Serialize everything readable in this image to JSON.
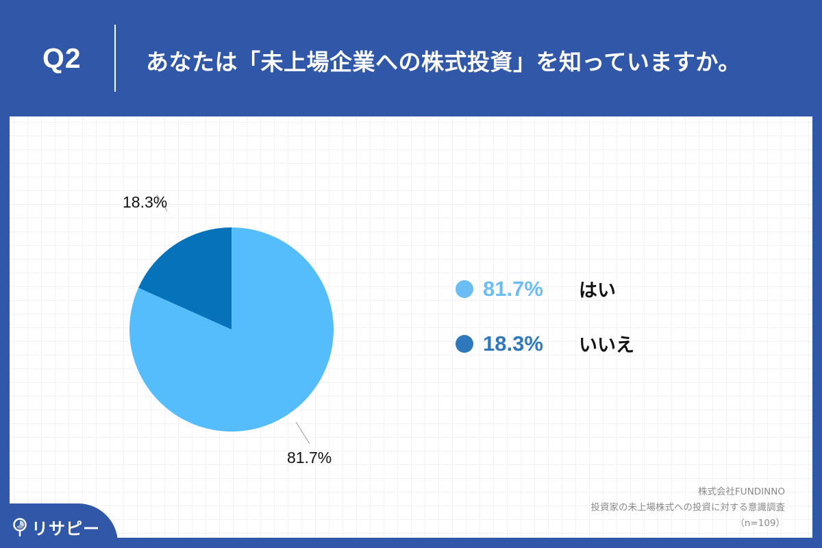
{
  "header": {
    "question_number": "Q2",
    "question_text": "あなたは「未上場企業への株式投資」を知っていますか。"
  },
  "chart_data": {
    "type": "pie",
    "title": "あなたは「未上場企業への株式投資」を知っていますか。",
    "categories": [
      "はい",
      "いいえ"
    ],
    "values": [
      81.7,
      18.3
    ],
    "unit": "%",
    "colors": [
      "#55bdfb",
      "#0672b9"
    ],
    "start_angle": "12 o'clock, clockwise for はい",
    "data_labels": [
      "81.7%",
      "18.3%"
    ],
    "legend_position": "right",
    "grid": true,
    "n": 109
  },
  "pie": {
    "labels": {
      "yes": "81.7%",
      "no": "18.3%"
    }
  },
  "legend": {
    "items": [
      {
        "pct": "81.7%",
        "label": "はい",
        "color": "#6cbcf5"
      },
      {
        "pct": "18.3%",
        "label": "いいえ",
        "color": "#2f78bd"
      }
    ]
  },
  "source": {
    "company": "株式会社FUNDINNO",
    "survey": "投資家の未上場株式への投資に対する意識調査",
    "sample": "（n=109）"
  },
  "logo": {
    "text": "リサピー"
  },
  "colors": {
    "brand_blue": "#3157a8",
    "slice_yes": "#55bdfb",
    "slice_no": "#0672b9"
  }
}
